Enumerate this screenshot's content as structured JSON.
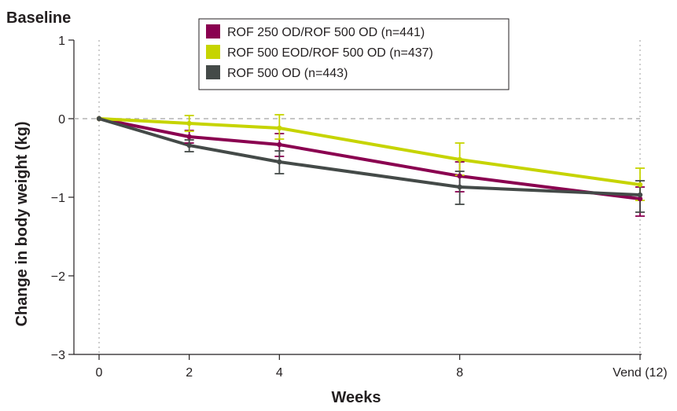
{
  "chart_data": {
    "type": "line",
    "title": "",
    "corner_label": "Baseline",
    "xlabel": "Weeks",
    "ylabel": "Change in body weight (kg)",
    "ylim": [
      -3,
      1
    ],
    "xlim": [
      0,
      12
    ],
    "x_ticks": [
      0,
      2,
      4,
      8,
      12
    ],
    "x_tick_labels": [
      "0",
      "2",
      "4",
      "8",
      "Vend (12)"
    ],
    "y_ticks": [
      1,
      0,
      -1,
      -2,
      -3
    ],
    "y_tick_labels": [
      "1",
      "0",
      "−1",
      "−2",
      "−3"
    ],
    "reference_line_y": 0,
    "vertical_reference_lines_x": [
      0,
      12
    ],
    "grid": false,
    "legend_position": "top-center",
    "x": [
      0,
      2,
      4,
      8,
      12
    ],
    "series": [
      {
        "name": "ROF 250 OD/ROF 500 OD (n=441)",
        "color": "#8a0050",
        "values": [
          0,
          -0.23,
          -0.33,
          -0.73,
          -1.02
        ],
        "err_low": [
          0,
          0.08,
          0.15,
          0.2,
          0.22
        ],
        "err_high": [
          0,
          0.08,
          0.14,
          0.18,
          0.15
        ]
      },
      {
        "name": "ROF 500 EOD/ROF 500 OD (n=437)",
        "color": "#c6d400",
        "values": [
          0,
          -0.06,
          -0.12,
          -0.52,
          -0.84
        ],
        "err_low": [
          0,
          0.1,
          0.14,
          0.2,
          0.2
        ],
        "err_high": [
          0,
          0.1,
          0.17,
          0.21,
          0.21
        ]
      },
      {
        "name": "ROF 500 OD (n=443)",
        "color": "#444a48",
        "values": [
          0,
          -0.34,
          -0.55,
          -0.87,
          -0.97
        ],
        "err_low": [
          0,
          0.08,
          0.15,
          0.22,
          0.22
        ],
        "err_high": [
          0,
          0.07,
          0.14,
          0.2,
          0.18
        ]
      }
    ]
  }
}
